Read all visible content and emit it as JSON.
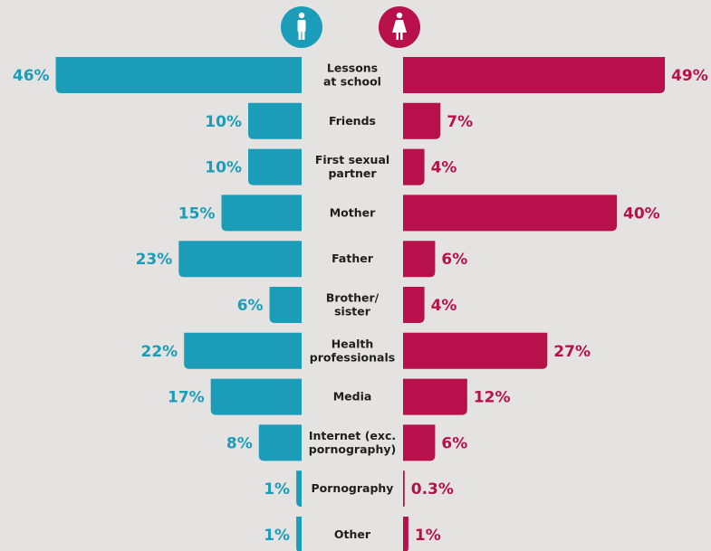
{
  "chart_data": {
    "type": "butterfly",
    "categories": [
      "Lessons\nat school",
      "Friends",
      "First sexual\npartner",
      "Mother",
      "Father",
      "Brother/\nsister",
      "Health\nprofessionals",
      "Media",
      "Internet (exc.\npornography)",
      "Pornography",
      "Other"
    ],
    "series": [
      {
        "name": "Male",
        "color": "#1b9cb8",
        "side": "left",
        "values": [
          46,
          10,
          10,
          15,
          23,
          6,
          22,
          17,
          8,
          1,
          1
        ],
        "value_labels": [
          "46%",
          "10%",
          "10%",
          "15%",
          "23%",
          "6%",
          "22%",
          "17%",
          "8%",
          "1%",
          "1%"
        ]
      },
      {
        "name": "Female",
        "color": "#b8104a",
        "side": "right",
        "values": [
          49,
          7,
          4,
          40,
          6,
          4,
          27,
          12,
          6,
          0.3,
          1
        ],
        "value_labels": [
          "49%",
          "7%",
          "4%",
          "40%",
          "6%",
          "4%",
          "27%",
          "12%",
          "6%",
          "0.3%",
          "1%"
        ]
      }
    ]
  }
}
